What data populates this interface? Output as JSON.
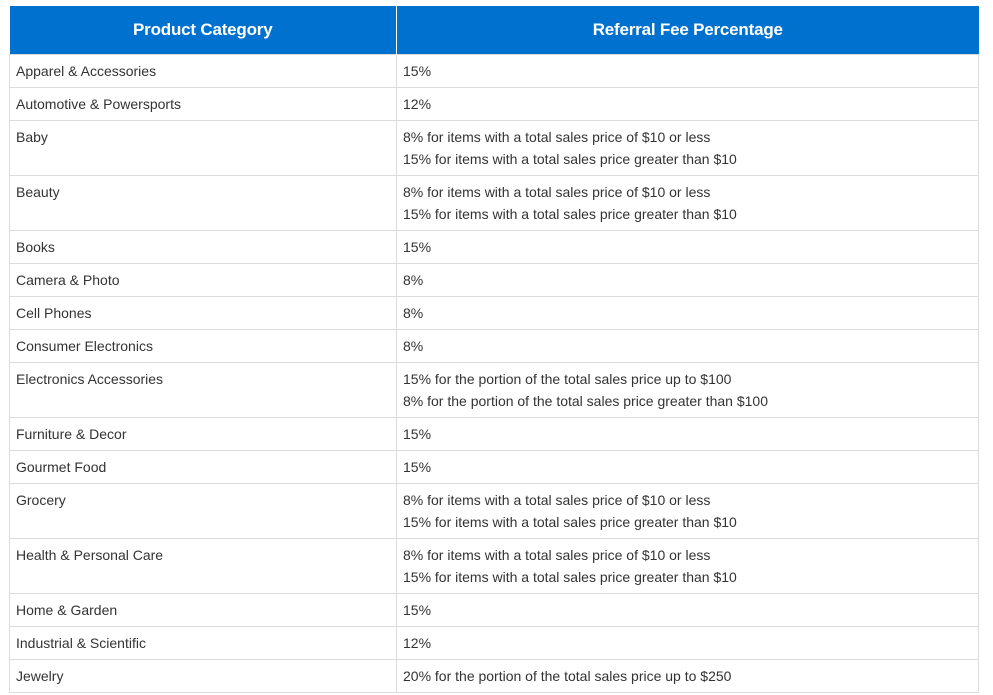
{
  "table": {
    "header": {
      "category": "Product Category",
      "fee": "Referral Fee Percentage"
    },
    "rows": [
      {
        "category": "Apparel & Accessories",
        "fee": [
          "15%"
        ]
      },
      {
        "category": "Automotive & Powersports",
        "fee": [
          "12%"
        ]
      },
      {
        "category": "Baby",
        "fee": [
          "8% for items with a total sales price of $10 or less",
          "15% for items with a total sales price greater than $10"
        ]
      },
      {
        "category": "Beauty",
        "fee": [
          "8% for items with a total sales price of $10 or less",
          "15% for items with a total sales price greater than $10"
        ]
      },
      {
        "category": "Books",
        "fee": [
          "15%"
        ]
      },
      {
        "category": "Camera & Photo",
        "fee": [
          "8%"
        ]
      },
      {
        "category": "Cell Phones",
        "fee": [
          "8%"
        ]
      },
      {
        "category": "Consumer Electronics",
        "fee": [
          "8%"
        ]
      },
      {
        "category": "Electronics Accessories",
        "fee": [
          "15% for the portion of the total sales price up to $100",
          "8% for the portion of the total sales price greater than $100"
        ]
      },
      {
        "category": "Furniture & Decor",
        "fee": [
          "15%"
        ]
      },
      {
        "category": "Gourmet Food",
        "fee": [
          "15%"
        ]
      },
      {
        "category": "Grocery",
        "fee": [
          "8% for items with a total sales price of $10 or less",
          "15% for items with a total sales price greater than $10"
        ]
      },
      {
        "category": "Health & Personal Care",
        "fee": [
          "8% for items with a total sales price of $10 or less",
          "15% for items with a total sales price greater than $10"
        ]
      },
      {
        "category": "Home & Garden",
        "fee": [
          "15%"
        ]
      },
      {
        "category": "Industrial & Scientific",
        "fee": [
          "12%"
        ]
      },
      {
        "category": "Jewelry",
        "fee": [
          "20% for the portion of the total sales price up to $250"
        ]
      }
    ]
  }
}
